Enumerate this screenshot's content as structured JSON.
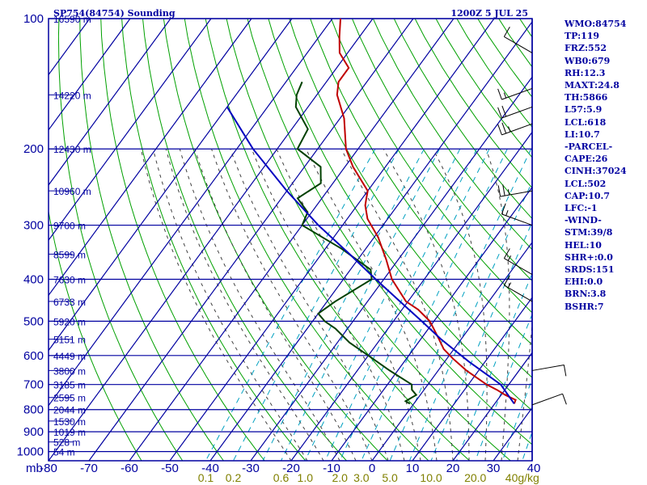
{
  "header": {
    "station": "SP754(84754) Sounding",
    "time": "1200Z  5 JUL 25"
  },
  "stats": [
    "WMO:84754",
    "TP:119",
    "FRZ:552",
    "WB0:679",
    "RH:12.3",
    "MAXT:24.8",
    "TH:5866",
    "L57:5.9",
    "LCL:618",
    "LI:10.7",
    "-PARCEL-",
    "CAPE:26",
    "CINH:37024",
    "LCL:502",
    "CAP:10.7",
    "LFC:-1",
    "-WIND-",
    "STM:39/8",
    "HEL:10",
    "SHR+:0.0",
    "SRDS:151",
    "EHI:0.0",
    "BRN:3.8",
    "BSHR:7"
  ],
  "colors": {
    "isobar": "#0000a0",
    "isotherm": "#0000a0",
    "dry_adiabat": "#00a000",
    "moist_adiabat": "#404040",
    "mixing_ratio": "#00a0c0",
    "temperature": "#c00000",
    "dewpoint": "#004000",
    "parcel": "#0000c0",
    "label": "#0000a0",
    "mixing_label": "#808000"
  },
  "chart_data": {
    "type": "line",
    "diagram": "skew-T log-p",
    "x_unit_label": "mb",
    "pressure_levels": [
      100,
      200,
      300,
      400,
      500,
      600,
      700,
      800,
      900,
      1000
    ],
    "temperature_ticks": [
      -80,
      -70,
      -60,
      -50,
      -40,
      -30,
      -20,
      -10,
      0,
      10,
      20,
      30,
      40
    ],
    "mixing_ratio_labels": [
      "0.1",
      "0.2",
      "0.6",
      "1.0",
      "2.0",
      "3.0",
      "5.0",
      "10.0",
      "20.0",
      "40g/kg"
    ],
    "height_labels": [
      {
        "p": 100,
        "text": "16590 m"
      },
      {
        "p": 150,
        "text": "14220 m"
      },
      {
        "p": 200,
        "text": "12430 m"
      },
      {
        "p": 250,
        "text": "10960 m"
      },
      {
        "p": 300,
        "text": "9700 m"
      },
      {
        "p": 350,
        "text": "8599 m"
      },
      {
        "p": 400,
        "text": "7630 m"
      },
      {
        "p": 450,
        "text": "6733 m"
      },
      {
        "p": 500,
        "text": "5920 m"
      },
      {
        "p": 550,
        "text": "5151 m"
      },
      {
        "p": 600,
        "text": "4449 m"
      },
      {
        "p": 650,
        "text": "3800 m"
      },
      {
        "p": 700,
        "text": "3185 m"
      },
      {
        "p": 750,
        "text": "2595 m"
      },
      {
        "p": 800,
        "text": "2044 m"
      },
      {
        "p": 850,
        "text": "1530 m"
      },
      {
        "p": 900,
        "text": "1019 m"
      },
      {
        "p": 950,
        "text": "528 m"
      },
      {
        "p": 1000,
        "text": "54 m"
      }
    ],
    "series": [
      {
        "key": "temperature",
        "points": [
          [
            775,
            24.8
          ],
          [
            760,
            24.5
          ],
          [
            740,
            21
          ],
          [
            720,
            18
          ],
          [
            700,
            14.5
          ],
          [
            650,
            7
          ],
          [
            610,
            1.5
          ],
          [
            580,
            -2.5
          ],
          [
            550,
            -5.5
          ],
          [
            500,
            -11
          ],
          [
            470,
            -16
          ],
          [
            450,
            -20.5
          ],
          [
            400,
            -28
          ],
          [
            360,
            -33
          ],
          [
            320,
            -39
          ],
          [
            290,
            -45
          ],
          [
            270,
            -48
          ],
          [
            260,
            -49
          ],
          [
            250,
            -50
          ],
          [
            220,
            -58
          ],
          [
            200,
            -63
          ],
          [
            170,
            -69
          ],
          [
            150,
            -75
          ],
          [
            140,
            -77
          ],
          [
            130,
            -77
          ],
          [
            120,
            -82
          ],
          [
            110,
            -85
          ],
          [
            100,
            -88
          ]
        ]
      },
      {
        "key": "dewpoint",
        "points": [
          [
            775,
            -1
          ],
          [
            765,
            -2.5
          ],
          [
            740,
            -1
          ],
          [
            720,
            -3
          ],
          [
            700,
            -4
          ],
          [
            650,
            -12
          ],
          [
            600,
            -20
          ],
          [
            560,
            -27
          ],
          [
            520,
            -33
          ],
          [
            500,
            -37
          ],
          [
            480,
            -40
          ],
          [
            450,
            -38
          ],
          [
            400,
            -33
          ],
          [
            380,
            -35
          ],
          [
            340,
            -46
          ],
          [
            300,
            -60
          ],
          [
            280,
            -61
          ],
          [
            260,
            -66
          ],
          [
            240,
            -63
          ],
          [
            220,
            -66
          ],
          [
            200,
            -75
          ],
          [
            180,
            -76
          ],
          [
            160,
            -83
          ],
          [
            150,
            -85
          ],
          [
            140,
            -86
          ]
        ]
      },
      {
        "key": "parcel",
        "points": [
          [
            775,
            24.8
          ],
          [
            700,
            18
          ],
          [
            620,
            6
          ],
          [
            550,
            -5
          ],
          [
            500,
            -13
          ],
          [
            450,
            -22
          ],
          [
            400,
            -32
          ],
          [
            350,
            -43
          ],
          [
            300,
            -56
          ],
          [
            250,
            -70
          ],
          [
            200,
            -86
          ],
          [
            160,
            -100
          ]
        ]
      }
    ],
    "wind_barbs": [
      {
        "p": 120,
        "dir": 300,
        "kt": 10
      },
      {
        "p": 145,
        "dir": 250,
        "kt": 15
      },
      {
        "p": 160,
        "dir": 250,
        "kt": 20
      },
      {
        "p": 175,
        "dir": 250,
        "kt": 25
      },
      {
        "p": 250,
        "dir": 260,
        "kt": 25
      },
      {
        "p": 300,
        "dir": 290,
        "kt": 15
      },
      {
        "p": 390,
        "dir": 300,
        "kt": 15
      },
      {
        "p": 450,
        "dir": 300,
        "kt": 15
      },
      {
        "p": 650,
        "dir": 80,
        "kt": 10
      },
      {
        "p": 780,
        "dir": 70,
        "kt": 10
      }
    ]
  }
}
